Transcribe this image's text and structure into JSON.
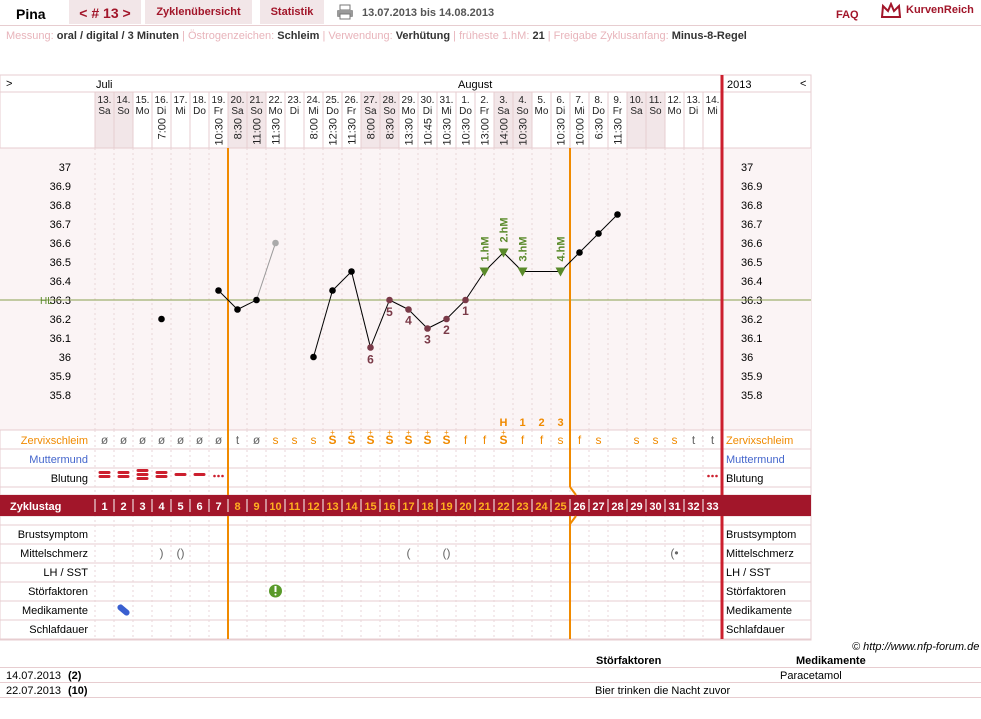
{
  "header": {
    "user": "Pina",
    "cycle_nav": "< # 13 >",
    "tabs": [
      "Zyklenübersicht",
      "Statistik"
    ],
    "date_range": "13.07.2013 bis 14.08.2013",
    "faq": "FAQ",
    "brand": "KurvenReich"
  },
  "info": [
    {
      "label": "Messung:",
      "value": "oral / digital / 3 Minuten"
    },
    {
      "label": "Östrogenzeichen:",
      "value": "Schleim"
    },
    {
      "label": "Verwendung:",
      "value": "Verhütung"
    },
    {
      "label": "früheste 1.hM:",
      "value": "21"
    },
    {
      "label": "Freigabe Zyklusanfang:",
      "value": "Minus-8-Regel"
    }
  ],
  "chart": {
    "nav_left": ">",
    "nav_right": "<",
    "months": [
      "Juli",
      "August"
    ],
    "year": "2013",
    "hl_label": "HL",
    "y_ticks": [
      "37",
      "36.9",
      "36.8",
      "36.7",
      "36.6",
      "36.5",
      "36.4",
      "36.3",
      "36.2",
      "36.1",
      "36",
      "35.9",
      "35.8"
    ],
    "day_numbers": [
      "13.",
      "14.",
      "15.",
      "16.",
      "17.",
      "18.",
      "19.",
      "20.",
      "21.",
      "22.",
      "23.",
      "24.",
      "25.",
      "26.",
      "27.",
      "28.",
      "29.",
      "30.",
      "31.",
      "1.",
      "2.",
      "3.",
      "4.",
      "5.",
      "6.",
      "7.",
      "8.",
      "9.",
      "10.",
      "11.",
      "12.",
      "13.",
      "14."
    ],
    "weekdays": [
      "Sa",
      "So",
      "Mo",
      "Di",
      "Mi",
      "Do",
      "Fr",
      "Sa",
      "So",
      "Mo",
      "Di",
      "Mi",
      "Do",
      "Fr",
      "Sa",
      "So",
      "Mo",
      "Di",
      "Mi",
      "Do",
      "Fr",
      "Sa",
      "So",
      "Mo",
      "Di",
      "Mi",
      "Do",
      "Fr",
      "Sa",
      "So",
      "Mo",
      "Di",
      "Mi"
    ],
    "times": [
      "",
      "",
      "",
      "7:00",
      "",
      "",
      "10:30",
      "8:30",
      "11:00",
      "11:30",
      "",
      "8:00",
      "12:30",
      "11:30",
      "8:00",
      "8:30",
      "13:30",
      "10:45",
      "10:30",
      "10:30",
      "13:00",
      "14:00",
      "10:30",
      "",
      "10:30",
      "10:00",
      "6:30",
      "11:30",
      "",
      "",
      "",
      "",
      ""
    ],
    "temps": [
      null,
      null,
      null,
      36.2,
      null,
      null,
      36.35,
      36.25,
      36.3,
      36.6,
      null,
      36.0,
      36.35,
      36.45,
      36.05,
      36.3,
      36.25,
      36.15,
      36.2,
      36.3,
      36.45,
      36.55,
      36.45,
      null,
      36.45,
      36.55,
      36.65,
      36.75,
      null,
      null,
      null,
      null,
      null
    ],
    "hl": 36.3,
    "count_labels": [
      {
        "day": 14,
        "text": "6"
      },
      {
        "day": 15,
        "text": "5"
      },
      {
        "day": 16,
        "text": "4"
      },
      {
        "day": 17,
        "text": "3"
      },
      {
        "day": 18,
        "text": "2"
      },
      {
        "day": 19,
        "text": "1"
      }
    ],
    "hm_labels": [
      {
        "day": 20,
        "text": "1.hM"
      },
      {
        "day": 21,
        "text": "2.hM"
      },
      {
        "day": 22,
        "text": "3.hM"
      },
      {
        "day": 24,
        "text": "4.hM"
      }
    ],
    "phase_labels": [
      {
        "day": 21,
        "text": "H"
      },
      {
        "day": 22,
        "text": "1"
      },
      {
        "day": 23,
        "text": "2"
      },
      {
        "day": 24,
        "text": "3"
      }
    ],
    "mucus": [
      "ø",
      "ø",
      "ø",
      "ø",
      "ø",
      "ø",
      "ø",
      "t",
      "ø",
      "s",
      "s",
      "s",
      "S+",
      "S+",
      "S+",
      "S+",
      "S+",
      "S+",
      "S+",
      "f",
      "f",
      "S+",
      "f",
      "f",
      "s",
      "f",
      "s",
      "",
      "s",
      "s",
      "s",
      "t",
      "t"
    ],
    "rows_left": [
      "Zervixschleim",
      "Muttermund",
      "Blutung",
      "Zyklustag",
      "Brustsymptom",
      "Mittelschmerz",
      "LH / SST",
      "Störfaktoren",
      "Medikamente",
      "Schlafdauer"
    ],
    "cycle_days": [
      "1",
      "2",
      "3",
      "4",
      "5",
      "6",
      "7",
      "8",
      "9",
      "10",
      "11",
      "12",
      "13",
      "14",
      "15",
      "16",
      "17",
      "18",
      "19",
      "20",
      "21",
      "22",
      "23",
      "24",
      "25",
      "26",
      "27",
      "28",
      "29",
      "30",
      "31",
      "32",
      "33"
    ]
  },
  "footer": {
    "copyright": "© http://www.nfp-forum.de",
    "col_stoer": "Störfaktoren",
    "col_med": "Medikamente",
    "rows": [
      {
        "date": "14.07.2013",
        "day": "(2)",
        "stoer": "",
        "med": "Paracetamol"
      },
      {
        "date": "22.07.2013",
        "day": "(10)",
        "stoer": "Bier trinken die Nacht zuvor",
        "med": ""
      }
    ]
  },
  "colors": {
    "accent": "#a2162a",
    "orange": "#f08a00",
    "green": "#5a8a2a",
    "blue": "#4466cc",
    "tile": "#f2e6e8"
  }
}
